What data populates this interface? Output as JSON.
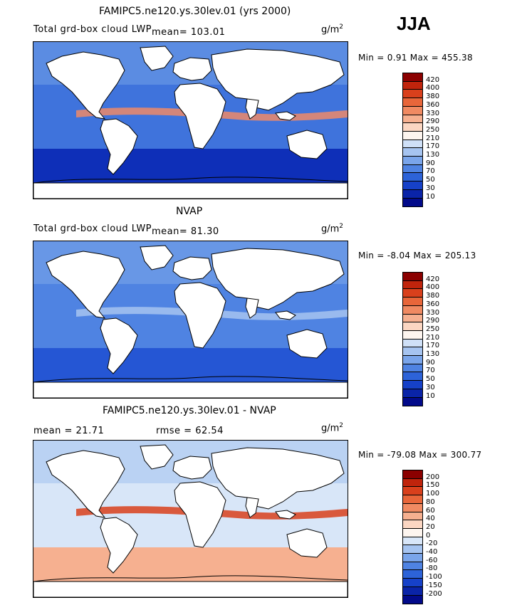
{
  "season": "JJA",
  "units_base": "g/m",
  "units_exp": "2",
  "panels": [
    {
      "id": "model",
      "title": "FAMIPC5.ne120.ys.30lev.01 (yrs 2000)",
      "subtitle_pre": "Total grd-box cloud LWP",
      "subtitle_mean": "mean=  103.01",
      "stats": "Min =    0.91  Max =  455.38",
      "scale": "abs"
    },
    {
      "id": "obs",
      "title": "NVAP",
      "subtitle_pre": "Total grd-box cloud LWP",
      "subtitle_mean": "mean=   81.30",
      "stats": "Min =  -8.04  Max =  205.13",
      "scale": "abs"
    },
    {
      "id": "diff",
      "title": "FAMIPC5.ne120.ys.30lev.01 - NVAP",
      "mean_text": "mean =   21.71",
      "rmse_text": "rmse =   62.54",
      "stats": "Min = -79.08  Max =  300.77",
      "scale": "diff"
    }
  ],
  "colorbars": {
    "abs": {
      "labels": [
        "420",
        "400",
        "380",
        "360",
        "330",
        "290",
        "250",
        "210",
        "170",
        "130",
        "90",
        "70",
        "50",
        "30",
        "10"
      ],
      "colors": [
        "#8b0000",
        "#c0240c",
        "#d9401c",
        "#e8663a",
        "#f08a62",
        "#f6b090",
        "#fbd6c2",
        "#fdf5ef",
        "#cfe0f7",
        "#a6c4f0",
        "#7aa5ea",
        "#4f83e2",
        "#2d63d8",
        "#1641c8",
        "#0a24a8",
        "#020a8a"
      ]
    },
    "diff": {
      "labels": [
        "200",
        "150",
        "100",
        "80",
        "60",
        "40",
        "20",
        "0",
        "-20",
        "-40",
        "-60",
        "-80",
        "-100",
        "-150",
        "-200"
      ],
      "colors": [
        "#8b0000",
        "#c0240c",
        "#d9401c",
        "#e8663a",
        "#f08a62",
        "#f6b090",
        "#fbd6c2",
        "#fdf5ef",
        "#d8e6f8",
        "#a6c4f0",
        "#7aa5ea",
        "#4f83e2",
        "#2d63d8",
        "#1641c8",
        "#0a24a8",
        "#020a8a"
      ]
    }
  },
  "map_fills": {
    "model": {
      "ocean": "#3f73dc",
      "band": "#ee8a68",
      "polar": "#0e2fb8",
      "mid": "#6e9de6"
    },
    "obs": {
      "ocean": "#4f83e2",
      "band": "#a6c4f0",
      "polar": "#2556d4",
      "mid": "#7aa5ea"
    },
    "diff": {
      "ocean": "#d8e6f8",
      "band": "#d9401c",
      "polar": "#f6b090",
      "mid": "#a6c4f0"
    }
  }
}
